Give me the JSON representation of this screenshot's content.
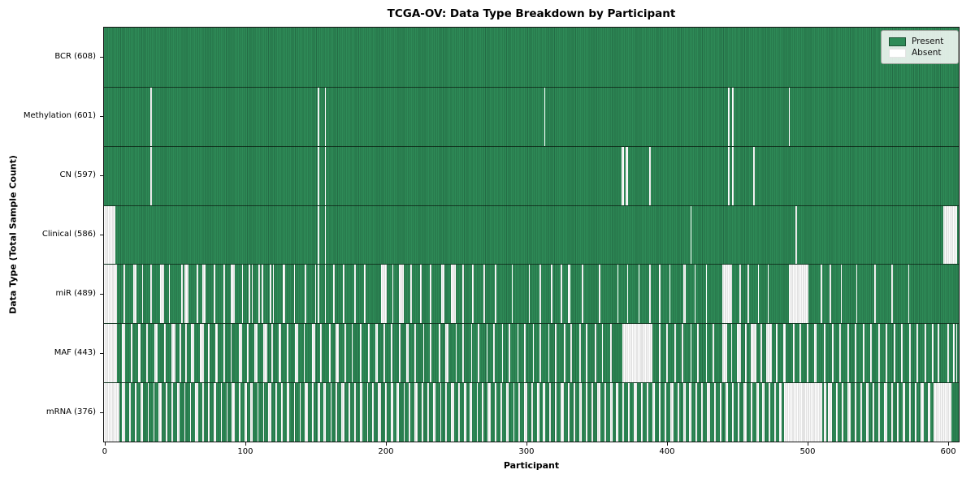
{
  "chart_data": {
    "type": "heatmap",
    "title": "TCGA-OV: Data Type Breakdown by Participant",
    "xlabel": "Participant",
    "ylabel": "Data Type (Total Sample Count)",
    "n_participants": 608,
    "x_ticks": [
      0,
      100,
      200,
      300,
      400,
      500,
      600
    ],
    "xlim": [
      0,
      608
    ],
    "grid": false,
    "legend_position": "upper right",
    "legend_items": [
      {
        "label": "Present",
        "color": "#2e8b57"
      },
      {
        "label": "Absent",
        "color": "#ffffff"
      }
    ],
    "colors": {
      "present_fill": "#2e8b57",
      "present_edge": "#246c45",
      "absent_fill": "#ffffff",
      "absent_edge": "#c9c9c9",
      "row_separator": "#1a1a1a",
      "plot_border": "#151515"
    },
    "encoding_note": "rows[].absent lists participant indices (int) or inclusive [start,end] ranges that are Absent; all other participants are Present",
    "rows": [
      {
        "label": "BCR (608)",
        "name": "BCR",
        "present_count": 608,
        "absent": []
      },
      {
        "label": "Methylation (601)",
        "name": "Methylation",
        "present_count": 601,
        "absent": [
          33,
          152,
          157,
          313,
          444,
          447,
          487
        ]
      },
      {
        "label": "CN (597)",
        "name": "CN",
        "present_count": 597,
        "absent": [
          33,
          152,
          157,
          [
            368,
            369
          ],
          [
            371,
            372
          ],
          388,
          444,
          447,
          462
        ]
      },
      {
        "label": "Clinical (586)",
        "name": "Clinical",
        "present_count": 586,
        "absent": [
          [
            0,
            7
          ],
          152,
          157,
          417,
          492,
          [
            597,
            606
          ]
        ]
      },
      {
        "label": "miR (489)",
        "name": "miR",
        "present_count": 489,
        "absent": [
          [
            0,
            8
          ],
          14,
          21,
          22,
          27,
          33,
          [
            40,
            42
          ],
          46,
          55,
          [
            57,
            59
          ],
          66,
          70,
          71,
          78,
          85,
          [
            90,
            92
          ],
          98,
          103,
          105,
          110,
          112,
          118,
          120,
          127,
          128,
          135,
          143,
          150,
          152,
          157,
          163,
          170,
          178,
          185,
          [
            197,
            200
          ],
          205,
          [
            210,
            212
          ],
          218,
          225,
          232,
          240,
          241,
          [
            247,
            249
          ],
          255,
          262,
          270,
          278,
          290,
          302,
          310,
          318,
          325,
          330,
          331,
          340,
          352,
          365,
          372,
          380,
          388,
          395,
          402,
          412,
          413,
          420,
          428,
          [
            440,
            446
          ],
          452,
          458,
          465,
          472,
          [
            487,
            500
          ],
          510,
          516,
          524,
          535,
          548,
          560,
          572
        ]
      },
      {
        "label": "MAF (443)",
        "name": "MAF",
        "present_count": 443,
        "absent": [
          [
            0,
            8
          ],
          13,
          14,
          19,
          24,
          25,
          30,
          36,
          37,
          43,
          [
            48,
            50
          ],
          54,
          58,
          62,
          63,
          [
            68,
            70
          ],
          74,
          79,
          80,
          85,
          90,
          96,
          97,
          102,
          107,
          108,
          [
            113,
            115
          ],
          119,
          124,
          125,
          130,
          136,
          137,
          142,
          148,
          149,
          154,
          160,
          165,
          166,
          171,
          176,
          182,
          188,
          193,
          194,
          199,
          204,
          210,
          215,
          216,
          221,
          227,
          232,
          238,
          243,
          244,
          250,
          255,
          261,
          266,
          272,
          277,
          283,
          288,
          294,
          299,
          305,
          310,
          316,
          321,
          327,
          332,
          338,
          343,
          349,
          354,
          360,
          [
            369,
            389
          ],
          395,
          400,
          406,
          411,
          417,
          422,
          428,
          433,
          [
            440,
            442
          ],
          446,
          [
            450,
            452
          ],
          456,
          [
            460,
            463
          ],
          467,
          [
            471,
            474
          ],
          478,
          483,
          484,
          490,
          495,
          500,
          505,
          506,
          512,
          518,
          523,
          529,
          534,
          540,
          545,
          551,
          556,
          562,
          567,
          573,
          578,
          584,
          589,
          593,
          600,
          604,
          606
        ]
      },
      {
        "label": "mRNA (376)",
        "name": "mRNA",
        "present_count": 376,
        "absent": [
          [
            0,
            10
          ],
          [
            13,
            14
          ],
          18,
          22,
          [
            26,
            27
          ],
          31,
          35,
          [
            39,
            40
          ],
          44,
          48,
          [
            52,
            53
          ],
          57,
          61,
          [
            65,
            66
          ],
          70,
          74,
          [
            78,
            79
          ],
          83,
          87,
          [
            91,
            92
          ],
          96,
          100,
          101,
          [
            104,
            105
          ],
          109,
          113,
          [
            117,
            118
          ],
          122,
          126,
          [
            130,
            131
          ],
          135,
          139,
          [
            143,
            144
          ],
          148,
          152,
          153,
          [
            156,
            157
          ],
          161,
          165,
          [
            169,
            170
          ],
          174,
          178,
          [
            182,
            183
          ],
          187,
          191,
          [
            195,
            196
          ],
          200,
          204,
          205,
          [
            208,
            209
          ],
          213,
          217,
          [
            221,
            222
          ],
          226,
          230,
          [
            234,
            235
          ],
          239,
          243,
          [
            247,
            248
          ],
          252,
          256,
          257,
          [
            260,
            261
          ],
          265,
          269,
          [
            273,
            274
          ],
          278,
          282,
          [
            286,
            287
          ],
          291,
          295,
          [
            299,
            300
          ],
          304,
          308,
          309,
          [
            312,
            313
          ],
          317,
          321,
          [
            325,
            326
          ],
          330,
          334,
          [
            338,
            339
          ],
          343,
          347,
          [
            351,
            352
          ],
          356,
          360,
          361,
          [
            364,
            365
          ],
          369,
          373,
          [
            377,
            378
          ],
          382,
          386,
          [
            390,
            391
          ],
          395,
          399,
          [
            403,
            404
          ],
          408,
          412,
          413,
          [
            416,
            417
          ],
          421,
          425,
          [
            429,
            430
          ],
          434,
          438,
          [
            442,
            443
          ],
          447,
          451,
          [
            455,
            456
          ],
          460,
          464,
          465,
          [
            468,
            469
          ],
          473,
          477,
          480,
          481,
          [
            484,
            510
          ],
          512,
          513,
          515,
          [
            516,
            517
          ],
          521,
          525,
          [
            529,
            530
          ],
          534,
          538,
          [
            542,
            543
          ],
          547,
          551,
          [
            555,
            556
          ],
          560,
          564,
          [
            568,
            569
          ],
          573,
          577,
          [
            581,
            582
          ],
          586,
          587,
          [
            590,
            602
          ]
        ]
      }
    ]
  }
}
